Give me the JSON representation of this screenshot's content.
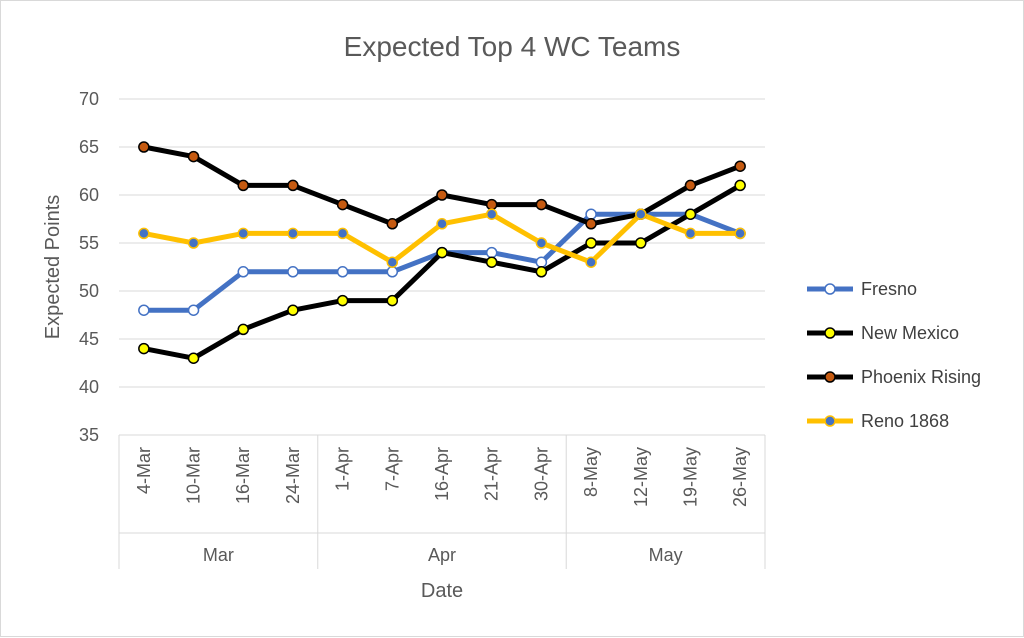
{
  "chart_data": {
    "type": "line",
    "title": "Expected Top 4 WC Teams",
    "xlabel": "Date",
    "ylabel": "Expected Points",
    "ylim": [
      35,
      70
    ],
    "yticks": [
      35,
      40,
      45,
      50,
      55,
      60,
      65,
      70
    ],
    "grid": true,
    "legend_position": "right",
    "categories": [
      "4-Mar",
      "10-Mar",
      "16-Mar",
      "24-Mar",
      "1-Apr",
      "7-Apr",
      "16-Apr",
      "21-Apr",
      "30-Apr",
      "8-May",
      "12-May",
      "19-May",
      "26-May"
    ],
    "groups": [
      {
        "label": "Mar",
        "count": 4
      },
      {
        "label": "Apr",
        "count": 5
      },
      {
        "label": "May",
        "count": 4
      }
    ],
    "series": [
      {
        "name": "Fresno",
        "line_color": "#4472c4",
        "marker_fill": "#ffffff",
        "marker_stroke": "#4472c4",
        "values": [
          48,
          48,
          52,
          52,
          52,
          52,
          54,
          54,
          53,
          58,
          58,
          58,
          56
        ]
      },
      {
        "name": "New Mexico",
        "line_color": "#000000",
        "marker_fill": "#ffff00",
        "marker_stroke": "#000000",
        "values": [
          44,
          43,
          46,
          48,
          49,
          49,
          54,
          53,
          52,
          55,
          55,
          58,
          61
        ]
      },
      {
        "name": "Phoenix Rising",
        "line_color": "#000000",
        "marker_fill": "#c55a11",
        "marker_stroke": "#000000",
        "values": [
          65,
          64,
          61,
          61,
          59,
          57,
          60,
          59,
          59,
          57,
          58,
          61,
          63
        ]
      },
      {
        "name": "Reno 1868",
        "line_color": "#ffc000",
        "marker_fill": "#4472c4",
        "marker_stroke": "#ffc000",
        "values": [
          56,
          55,
          56,
          56,
          56,
          53,
          57,
          58,
          55,
          53,
          58,
          56,
          56
        ]
      }
    ]
  }
}
